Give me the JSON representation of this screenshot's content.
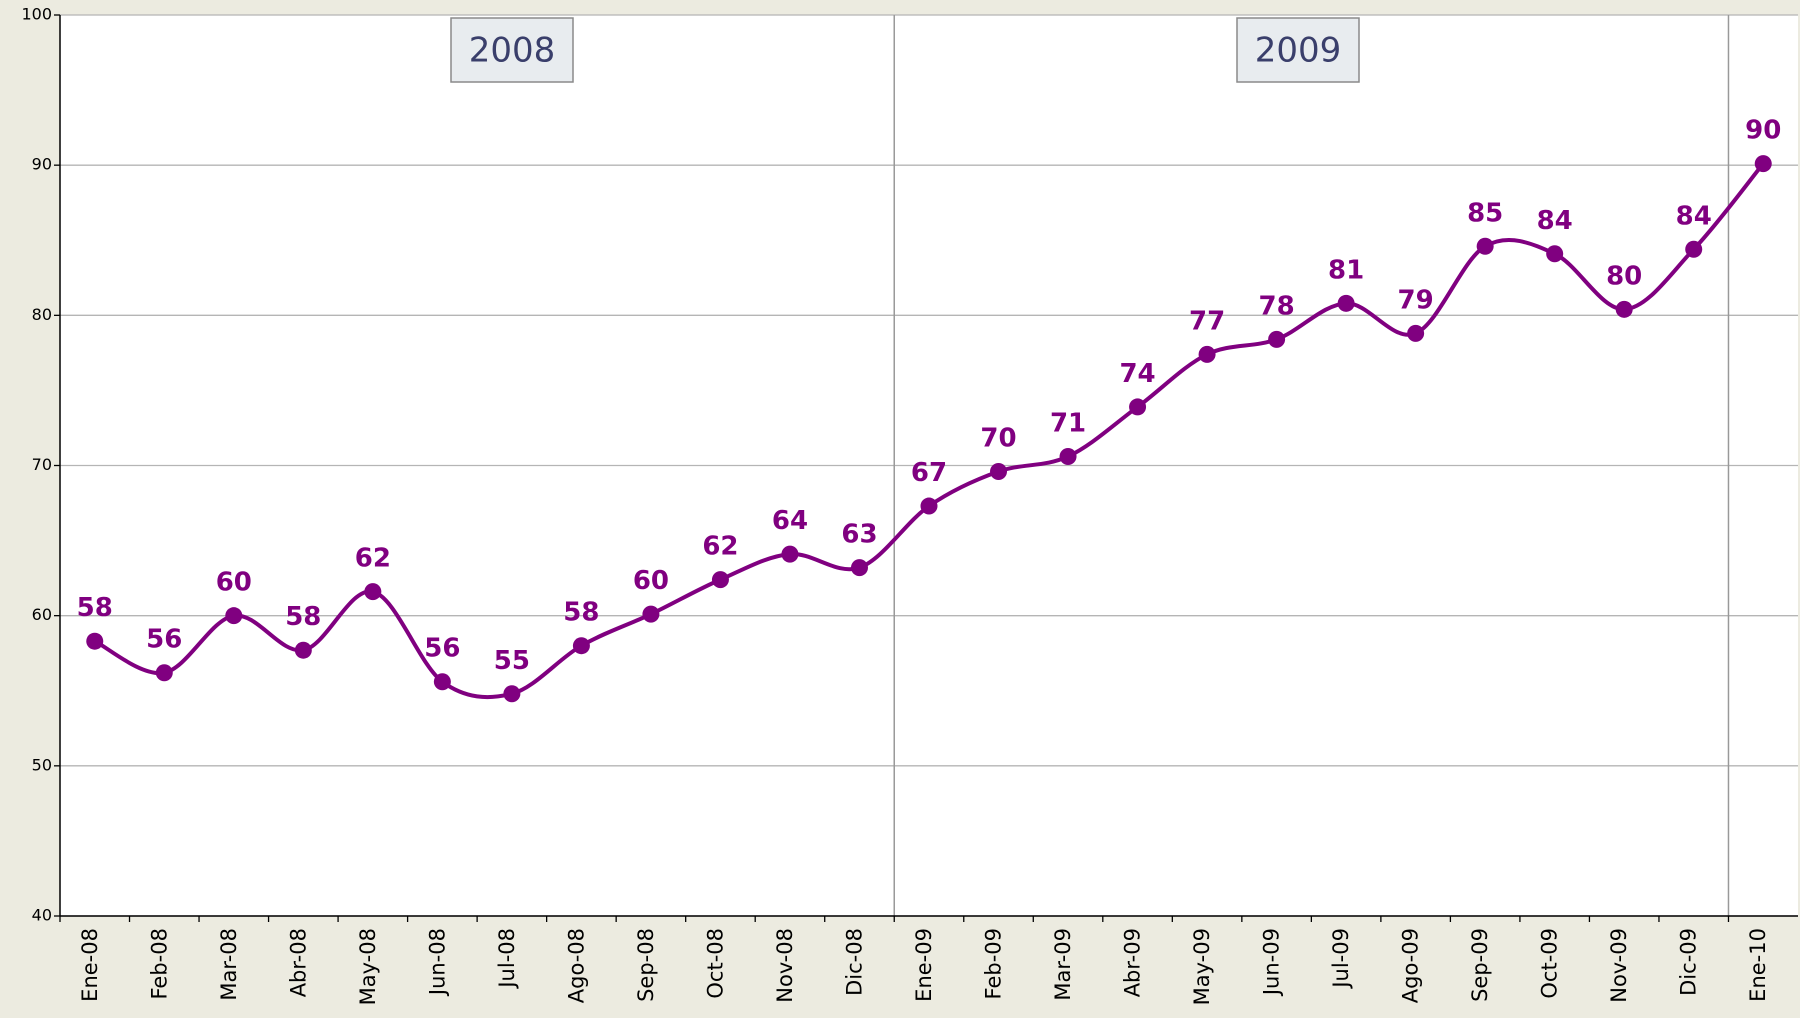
{
  "chart_data": {
    "type": "line",
    "categories": [
      "Ene-08",
      "Feb-08",
      "Mar-08",
      "Abr-08",
      "May-08",
      "Jun-08",
      "Jul-08",
      "Ago-08",
      "Sep-08",
      "Oct-08",
      "Nov-08",
      "Dic-08",
      "Ene-09",
      "Feb-09",
      "Mar-09",
      "Abr-09",
      "May-09",
      "Jun-09",
      "Jul-09",
      "Ago-09",
      "Sep-09",
      "Oct-09",
      "Nov-09",
      "Dic-09",
      "Ene-10"
    ],
    "series": [
      {
        "color": "#800080",
        "values": [
          58.3,
          56.2,
          60.0,
          57.7,
          61.6,
          55.6,
          54.8,
          58.0,
          60.1,
          62.4,
          64.1,
          63.2,
          67.3,
          69.6,
          70.6,
          73.9,
          77.4,
          78.4,
          80.8,
          78.8,
          84.6,
          84.1,
          80.4,
          84.4,
          90.1
        ],
        "value_labels": [
          "58",
          "56",
          "60",
          "58",
          "62",
          "56",
          "55",
          "58",
          "60",
          "62",
          "64",
          "63",
          "67",
          "70",
          "71",
          "74",
          "77",
          "78",
          "81",
          "79",
          "85",
          "84",
          "80",
          "84",
          "90"
        ]
      }
    ],
    "ylim": [
      40,
      100
    ],
    "yticks": [
      40,
      50,
      60,
      70,
      80,
      90,
      100
    ],
    "grid": true,
    "annotations": [
      "2008",
      "2009"
    ]
  }
}
